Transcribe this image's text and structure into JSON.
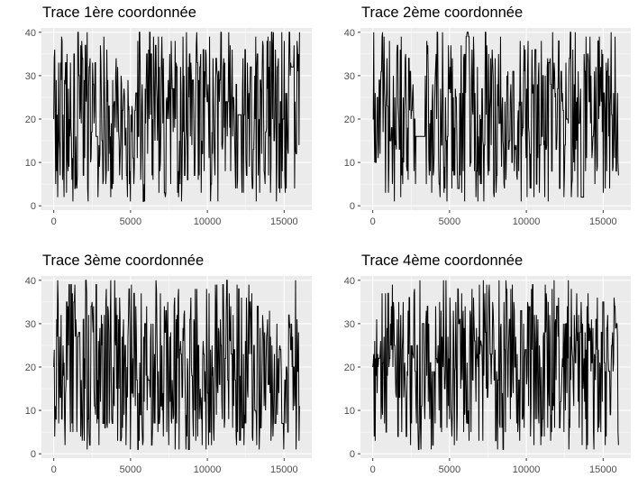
{
  "chart_data": [
    {
      "type": "line",
      "title": "Trace 1ère coordonnée",
      "xlabel": "",
      "ylabel": "",
      "xlim": [
        -800,
        16800
      ],
      "ylim": [
        -1,
        41
      ],
      "x_ticks": [
        0,
        5000,
        10000,
        15000
      ],
      "y_ticks": [
        0,
        10,
        20,
        30,
        40
      ],
      "n_points": 16000,
      "value_range": [
        1,
        40
      ],
      "flat_segments": [
        [
          12000,
          12200,
          21
        ]
      ],
      "grid": true,
      "background": "#ebebeb",
      "line_color": "#000000"
    },
    {
      "type": "line",
      "title": "Trace 2ème coordonnée",
      "xlabel": "",
      "ylabel": "",
      "xlim": [
        -800,
        16800
      ],
      "ylim": [
        -1,
        41
      ],
      "x_ticks": [
        0,
        5000,
        10000,
        15000
      ],
      "y_ticks": [
        0,
        10,
        20,
        30,
        40
      ],
      "n_points": 16000,
      "value_range": [
        1,
        40
      ],
      "flat_segments": [
        [
          2800,
          3400,
          16
        ]
      ],
      "grid": true,
      "background": "#ebebeb",
      "line_color": "#000000"
    },
    {
      "type": "line",
      "title": "Trace 3ème coordonnée",
      "xlabel": "",
      "ylabel": "",
      "xlim": [
        -800,
        16800
      ],
      "ylim": [
        -1,
        41
      ],
      "x_ticks": [
        0,
        5000,
        10000,
        15000
      ],
      "y_ticks": [
        0,
        10,
        20,
        30,
        40
      ],
      "n_points": 16000,
      "value_range": [
        1,
        40
      ],
      "flat_segments": [],
      "grid": true,
      "background": "#ebebeb",
      "line_color": "#000000"
    },
    {
      "type": "line",
      "title": "Trace 4ème coordonnée",
      "xlabel": "",
      "ylabel": "",
      "xlim": [
        -800,
        16800
      ],
      "ylim": [
        -1,
        41
      ],
      "x_ticks": [
        0,
        5000,
        10000,
        15000
      ],
      "y_ticks": [
        0,
        10,
        20,
        30,
        40
      ],
      "n_points": 16000,
      "value_range": [
        1,
        40
      ],
      "flat_segments": [],
      "grid": true,
      "background": "#ebebeb",
      "line_color": "#000000"
    }
  ]
}
